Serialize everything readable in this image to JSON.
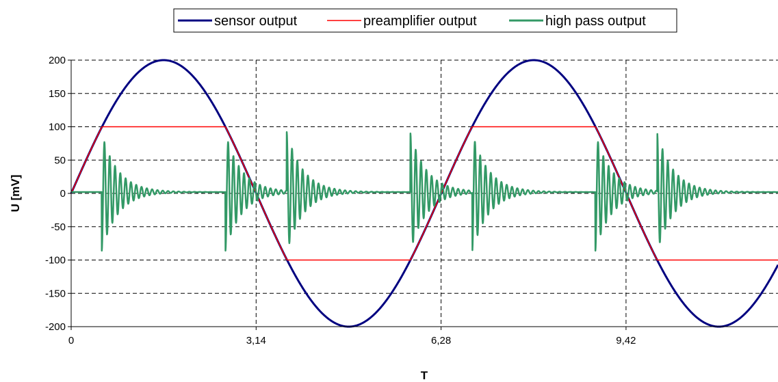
{
  "chart_data": {
    "type": "line",
    "title": "",
    "xlabel": "T",
    "ylabel": "U [mV]",
    "xlim": [
      0,
      12.0
    ],
    "ylim": [
      -200,
      200
    ],
    "x_ticks": [
      {
        "value": 0,
        "label": "0"
      },
      {
        "value": 3.14,
        "label": "3,14"
      },
      {
        "value": 6.28,
        "label": "6,28"
      },
      {
        "value": 9.42,
        "label": "9,42"
      }
    ],
    "y_ticks": [
      {
        "value": 200,
        "label": "200"
      },
      {
        "value": 150,
        "label": "150"
      },
      {
        "value": 100,
        "label": "100"
      },
      {
        "value": 50,
        "label": "50"
      },
      {
        "value": 0,
        "label": "0"
      },
      {
        "value": -50,
        "label": "-50"
      },
      {
        "value": -100,
        "label": "-100"
      },
      {
        "value": -150,
        "label": "-150"
      },
      {
        "value": -200,
        "label": "-200"
      }
    ],
    "grid": true,
    "legend_position": "top",
    "series": [
      {
        "name": "sensor output",
        "color": "#000080",
        "description_formula": "200*sin(x)",
        "x": [
          0,
          0.3,
          0.6,
          0.9,
          1.2,
          1.5,
          1.8,
          2.1,
          2.4,
          2.7,
          3.0,
          3.3,
          3.6,
          3.9,
          4.2,
          4.5,
          4.8,
          5.1,
          5.4,
          5.7,
          6.0,
          6.3,
          6.6,
          6.9,
          7.2,
          7.5,
          7.8,
          8.1,
          8.4,
          8.7,
          9.0,
          9.3,
          9.6,
          9.9,
          10.2,
          10.5,
          10.8,
          11.1,
          11.4,
          11.7,
          12.0
        ],
        "values": [
          0,
          59.1,
          112.9,
          156.7,
          186.4,
          199.5,
          194.8,
          172.6,
          135.1,
          85.4,
          28.2,
          -31.6,
          -88.5,
          -137.6,
          -174.1,
          -195.5,
          -199.2,
          -185.0,
          -154.5,
          -110.0,
          -55.9,
          3.4,
          62.3,
          115.7,
          158.8,
          187.6,
          199.7,
          193.9,
          170.7,
          132.4,
          82.4,
          25.0,
          -34.8,
          -91.5,
          -139.9,
          -175.8,
          -196.2,
          -198.9,
          -183.8,
          -152.5,
          -107.3
        ]
      },
      {
        "name": "preamplifier output",
        "color": "#ff0000",
        "description_formula": "clip(200*sin(x), -100, 100)",
        "x": [
          0,
          0.3,
          0.524,
          1.0,
          2.0,
          2.618,
          3.0,
          3.3,
          3.665,
          4.5,
          5.5,
          5.76,
          6.0,
          6.3,
          6.807,
          7.5,
          8.5,
          8.901,
          9.3,
          9.6,
          9.948,
          11.0,
          12.0
        ],
        "values": [
          0,
          59.1,
          100,
          100,
          100,
          100,
          28.2,
          -31.6,
          -100,
          -100,
          -100,
          -100,
          -55.9,
          3.4,
          100,
          100,
          100,
          100,
          25.0,
          -34.8,
          -100,
          -100,
          -100
        ]
      },
      {
        "name": "high pass output",
        "color": "#339966",
        "bursts": [
          {
            "t": 0.52,
            "sign": -1,
            "amp": 88
          },
          {
            "t": 2.62,
            "sign": -1,
            "amp": 88
          },
          {
            "t": 3.66,
            "sign": 1,
            "amp": 88
          },
          {
            "t": 5.76,
            "sign": 1,
            "amp": 88
          },
          {
            "t": 6.81,
            "sign": -1,
            "amp": 88
          },
          {
            "t": 8.9,
            "sign": -1,
            "amp": 88
          },
          {
            "t": 9.95,
            "sign": 1,
            "amp": 88
          }
        ],
        "baseline": 2
      }
    ]
  },
  "legend": {
    "items": [
      {
        "label": "sensor output",
        "color": "#000080"
      },
      {
        "label": "preamplifier output",
        "color": "#ff0000"
      },
      {
        "label": "high pass output",
        "color": "#339966"
      }
    ]
  }
}
